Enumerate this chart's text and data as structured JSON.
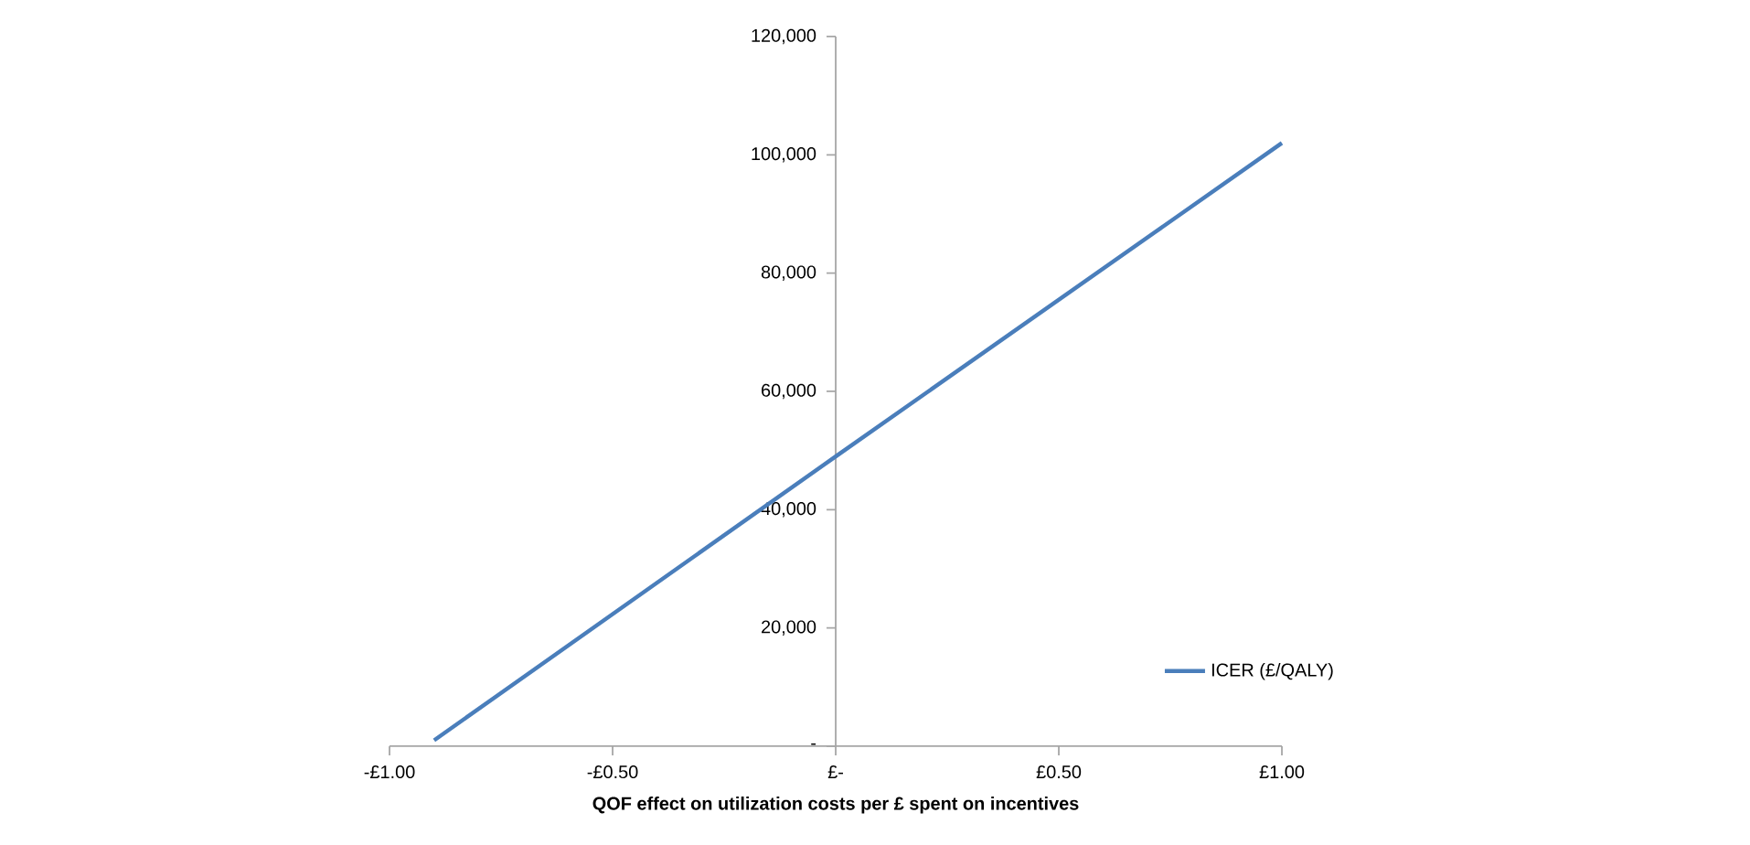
{
  "chart_data": {
    "type": "line",
    "xlabel": "QOF effect on utilization costs per £ spent on incentives",
    "x": [
      -0.9,
      0,
      1
    ],
    "series": [
      {
        "name": "ICER (£/QALY)",
        "color": "#4a7ebb",
        "values": [
          1000,
          49000,
          102000
        ]
      }
    ],
    "xlim": [
      -1,
      1
    ],
    "xticks": [
      {
        "value": -1,
        "label": "-£1.00"
      },
      {
        "value": -0.5,
        "label": "-£0.50"
      },
      {
        "value": 0,
        "label": "£-"
      },
      {
        "value": 0.5,
        "label": "£0.50"
      },
      {
        "value": 1,
        "label": "£1.00"
      }
    ],
    "ylim": [
      0,
      120000
    ],
    "yticks": [
      {
        "value": 0,
        "label": "-"
      },
      {
        "value": 20000,
        "label": "20,000"
      },
      {
        "value": 40000,
        "label": "40,000"
      },
      {
        "value": 60000,
        "label": "60,000"
      },
      {
        "value": 80000,
        "label": "80,000"
      },
      {
        "value": 100000,
        "label": "100,000"
      },
      {
        "value": 120000,
        "label": "120,000"
      }
    ],
    "legend": "bottom right",
    "marker": "none",
    "grid": false
  }
}
